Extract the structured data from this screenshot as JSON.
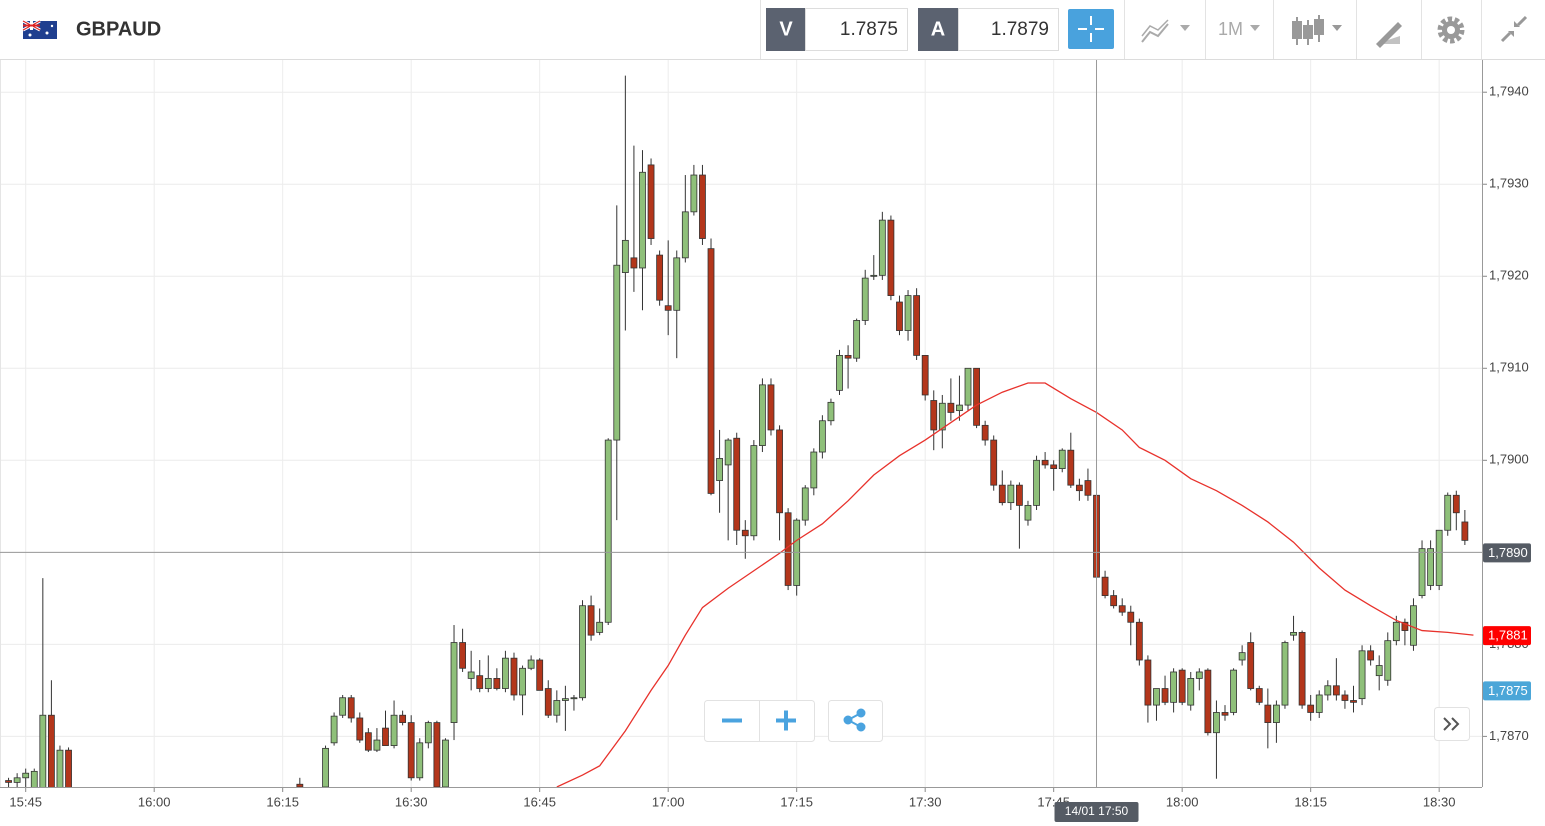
{
  "header": {
    "symbol": "GBPAUD",
    "sell": {
      "label": "V",
      "price": 1.7875
    },
    "buy": {
      "label": "A",
      "price": 1.7879
    },
    "timeframe": "1M"
  },
  "chart_data": {
    "type": "candlestick",
    "up_color": "#8fc07a",
    "down_color": "#b3361b",
    "grid": true,
    "xlim": [
      "15:42",
      "18:35"
    ],
    "xticks": [
      "15:45",
      "16:00",
      "16:15",
      "16:30",
      "16:45",
      "17:00",
      "17:15",
      "17:30",
      "17:45",
      "18:00",
      "18:15",
      "18:30"
    ],
    "ylim": [
      1.78645,
      1.79435
    ],
    "yticks": [
      {
        "value": 1.787,
        "label": "1,7870"
      },
      {
        "value": 1.788,
        "label": "1,7880"
      },
      {
        "value": 1.789,
        "label": "1,7890"
      },
      {
        "value": 1.79,
        "label": "1,7900"
      },
      {
        "value": 1.791,
        "label": "1,7910"
      },
      {
        "value": 1.792,
        "label": "1,7920"
      },
      {
        "value": 1.793,
        "label": "1,7930"
      },
      {
        "value": 1.794,
        "label": "1,7940"
      }
    ],
    "x": [
      "15:43",
      "15:44",
      "15:45",
      "15:46",
      "15:47",
      "15:48",
      "15:49",
      "15:50",
      "16:17",
      "16:20",
      "16:21",
      "16:22",
      "16:23",
      "16:24",
      "16:25",
      "16:26",
      "16:27",
      "16:28",
      "16:29",
      "16:30",
      "16:31",
      "16:32",
      "16:33",
      "16:34",
      "16:35",
      "16:36",
      "16:37",
      "16:38",
      "16:39",
      "16:40",
      "16:41",
      "16:42",
      "16:43",
      "16:44",
      "16:45",
      "16:46",
      "16:47",
      "16:48",
      "16:49",
      "16:50",
      "16:51",
      "16:52",
      "16:53",
      "16:54",
      "16:55",
      "16:56",
      "16:57",
      "16:58",
      "16:59",
      "17:00",
      "17:01",
      "17:02",
      "17:03",
      "17:04",
      "17:05",
      "17:06",
      "17:07",
      "17:08",
      "17:09",
      "17:10",
      "17:11",
      "17:12",
      "17:13",
      "17:14",
      "17:15",
      "17:16",
      "17:17",
      "17:18",
      "17:19",
      "17:20",
      "17:21",
      "17:22",
      "17:23",
      "17:24",
      "17:25",
      "17:26",
      "17:27",
      "17:28",
      "17:29",
      "17:30",
      "17:31",
      "17:32",
      "17:33",
      "17:34",
      "17:35",
      "17:36",
      "17:37",
      "17:38",
      "17:39",
      "17:40",
      "17:41",
      "17:42",
      "17:43",
      "17:44",
      "17:45",
      "17:46",
      "17:47",
      "17:48",
      "17:49",
      "17:50",
      "17:51",
      "17:52",
      "17:53",
      "17:54",
      "17:55",
      "17:56",
      "17:57",
      "17:58",
      "17:59",
      "18:00",
      "18:01",
      "18:02",
      "18:03",
      "18:04",
      "18:05",
      "18:06",
      "18:07",
      "18:08",
      "18:09",
      "18:10",
      "18:11",
      "18:12",
      "18:13",
      "18:14",
      "18:15",
      "18:16",
      "18:17",
      "18:18",
      "18:19",
      "18:20",
      "18:21",
      "18:22",
      "18:23",
      "18:24",
      "18:25",
      "18:26",
      "18:27",
      "18:28",
      "18:29",
      "18:30",
      "18:31",
      "18:32",
      "18:33"
    ],
    "open": [
      1.78652,
      1.7865,
      1.78655,
      1.7864,
      1.7864,
      1.78723,
      1.7862,
      1.78685,
      1.78648,
      1.78645,
      1.78693,
      1.78723,
      1.78742,
      1.7872,
      1.78704,
      1.78685,
      1.78709,
      1.7869,
      1.78723,
      1.78715,
      1.78655,
      1.78693,
      1.78715,
      1.78645,
      1.78715,
      1.78802,
      1.78763,
      1.78766,
      1.78752,
      1.78763,
      1.78752,
      1.78785,
      1.78745,
      1.78774,
      1.78783,
      1.78752,
      1.78723,
      1.78739,
      1.78741,
      1.78742,
      1.78842,
      1.78813,
      1.78824,
      1.79022,
      1.79204,
      1.7922,
      1.79209,
      1.79321,
      1.79223,
      1.79168,
      1.79163,
      1.7922,
      1.7927,
      1.7931,
      1.7923,
      1.78978,
      1.78995,
      1.79024,
      1.78924,
      1.78918,
      1.79016,
      1.79082,
      1.79033,
      1.78943,
      1.78864,
      1.78935,
      1.7897,
      1.79009,
      1.79043,
      1.79076,
      1.79114,
      1.79111,
      1.79152,
      1.79201,
      1.79201,
      1.79261,
      1.79172,
      1.79141,
      1.79179,
      1.79114,
      1.79065,
      1.79033,
      1.79062,
      1.79054,
      1.7906,
      1.791,
      1.79038,
      1.79022,
      1.78973,
      1.78954,
      1.78973,
      1.78935,
      1.78951,
      1.79,
      1.78995,
      1.78991,
      1.79011,
      1.78973,
      1.78978,
      1.78962,
      1.78873,
      1.78853,
      1.78842,
      1.78835,
      1.78824,
      1.78783,
      1.78734,
      1.78752,
      1.78737,
      1.78772,
      1.78734,
      1.78763,
      1.78772,
      1.78704,
      1.78726,
      1.78726,
      1.78783,
      1.78802,
      1.78752,
      1.78734,
      1.78715,
      1.78734,
      1.7881,
      1.78813,
      1.78734,
      1.78726,
      1.78745,
      1.78755,
      1.78745,
      1.78739,
      1.78741,
      1.78793,
      1.78766,
      1.78761,
      1.78804,
      1.78824,
      1.78799,
      1.78853,
      1.78864,
      1.78864,
      1.78924,
      1.78962,
      1.78933
    ],
    "high": [
      1.78655,
      1.7866,
      1.78665,
      1.78665,
      1.78872,
      1.78761,
      1.7869,
      1.78688,
      1.78655,
      1.7869,
      1.78726,
      1.78745,
      1.78745,
      1.78726,
      1.78709,
      1.78709,
      1.78728,
      1.78739,
      1.78728,
      1.78723,
      1.78698,
      1.78717,
      1.78717,
      1.78698,
      1.78821,
      1.78817,
      1.78793,
      1.78783,
      1.78788,
      1.78774,
      1.78793,
      1.78791,
      1.78777,
      1.78788,
      1.78785,
      1.78761,
      1.7875,
      1.78755,
      1.78745,
      1.78848,
      1.78853,
      1.78839,
      1.79024,
      1.79277,
      1.79418,
      1.79342,
      1.79337,
      1.79328,
      1.79228,
      1.79239,
      1.79228,
      1.7931,
      1.79321,
      1.79321,
      1.79241,
      1.79033,
      1.79024,
      1.7903,
      1.78935,
      1.79022,
      1.79089,
      1.79089,
      1.79038,
      1.78948,
      1.78937,
      1.78973,
      1.79013,
      1.79049,
      1.79067,
      1.7912,
      1.79125,
      1.79154,
      1.79207,
      1.79223,
      1.7927,
      1.79266,
      1.79179,
      1.79185,
      1.79187,
      1.79114,
      1.79076,
      1.79071,
      1.79089,
      1.79092,
      1.791,
      1.791,
      1.79043,
      1.79027,
      1.78989,
      1.78978,
      1.78976,
      1.78956,
      1.79005,
      1.79009,
      1.79,
      1.79013,
      1.7903,
      1.7898,
      1.78991,
      1.78967,
      1.7888,
      1.78859,
      1.7885,
      1.78842,
      1.78828,
      1.78788,
      1.78752,
      1.78766,
      1.78774,
      1.78774,
      1.7877,
      1.78774,
      1.78774,
      1.78739,
      1.78734,
      1.78774,
      1.78799,
      1.78813,
      1.78755,
      1.78752,
      1.78739,
      1.78804,
      1.78831,
      1.78815,
      1.78745,
      1.7875,
      1.78761,
      1.78785,
      1.7875,
      1.78755,
      1.78799,
      1.78799,
      1.78788,
      1.78813,
      1.78831,
      1.78828,
      1.7885,
      1.78913,
      1.78913,
      1.78924,
      1.78965,
      1.78967,
      1.78946
    ],
    "low": [
      1.78645,
      1.7864,
      1.7864,
      1.7863,
      1.7863,
      1.7862,
      1.7861,
      1.7862,
      1.7864,
      1.78641,
      1.7869,
      1.7872,
      1.78715,
      1.78693,
      1.78683,
      1.78683,
      1.7869,
      1.78687,
      1.78712,
      1.78652,
      1.78652,
      1.78687,
      1.78641,
      1.78641,
      1.78696,
      1.7877,
      1.7875,
      1.78748,
      1.78748,
      1.7875,
      1.78748,
      1.78739,
      1.78723,
      1.78772,
      1.7875,
      1.7872,
      1.78715,
      1.78706,
      1.78728,
      1.78739,
      1.78804,
      1.7881,
      1.78821,
      1.78935,
      1.79141,
      1.79183,
      1.79163,
      1.79234,
      1.79168,
      1.79136,
      1.79111,
      1.79215,
      1.79266,
      1.79234,
      1.78962,
      1.78943,
      1.78913,
      1.78908,
      1.78893,
      1.78913,
      1.79009,
      1.79027,
      1.78913,
      1.78859,
      1.78853,
      1.78929,
      1.78962,
      1.79002,
      1.79038,
      1.79071,
      1.79078,
      1.79107,
      1.79147,
      1.79196,
      1.79196,
      1.79174,
      1.79136,
      1.7913,
      1.79109,
      1.79065,
      1.79011,
      1.79013,
      1.79043,
      1.79043,
      1.79054,
      1.79035,
      1.79016,
      1.78967,
      1.78951,
      1.78946,
      1.78904,
      1.78929,
      1.78946,
      1.78991,
      1.78967,
      1.78987,
      1.7897,
      1.78956,
      1.78956,
      1.7887,
      1.7885,
      1.78839,
      1.78831,
      1.78799,
      1.78777,
      1.78715,
      1.78717,
      1.78734,
      1.78726,
      1.78734,
      1.78728,
      1.7875,
      1.78701,
      1.78654,
      1.78717,
      1.78723,
      1.78777,
      1.7875,
      1.78734,
      1.78687,
      1.78693,
      1.7873,
      1.78804,
      1.7873,
      1.78717,
      1.7872,
      1.78739,
      1.78739,
      1.7873,
      1.78726,
      1.78734,
      1.78777,
      1.7875,
      1.78755,
      1.78799,
      1.78799,
      1.78793,
      1.7885,
      1.78859,
      1.78859,
      1.78918,
      1.78924,
      1.78908
    ],
    "close": [
      1.7865,
      1.78655,
      1.7866,
      1.78662,
      1.78723,
      1.7864,
      1.78685,
      1.7863,
      1.78645,
      1.78687,
      1.78722,
      1.78742,
      1.7872,
      1.78696,
      1.78685,
      1.78696,
      1.7869,
      1.78723,
      1.78715,
      1.78655,
      1.78693,
      1.78715,
      1.78645,
      1.78696,
      1.78802,
      1.78774,
      1.7877,
      1.78752,
      1.78763,
      1.78752,
      1.78785,
      1.78745,
      1.78774,
      1.78783,
      1.7875,
      1.78723,
      1.78739,
      1.78741,
      1.78742,
      1.78842,
      1.7881,
      1.78824,
      1.79022,
      1.79212,
      1.79239,
      1.79209,
      1.79313,
      1.79241,
      1.79174,
      1.79163,
      1.7922,
      1.7927,
      1.7931,
      1.79241,
      1.78964,
      1.79002,
      1.79022,
      1.78924,
      1.78918,
      1.79016,
      1.79082,
      1.79033,
      1.78943,
      1.78864,
      1.78935,
      1.7897,
      1.79009,
      1.79043,
      1.79063,
      1.79114,
      1.79111,
      1.79152,
      1.79198,
      1.79201,
      1.79261,
      1.79179,
      1.79141,
      1.79179,
      1.79114,
      1.79071,
      1.79033,
      1.79062,
      1.79052,
      1.7906,
      1.791,
      1.79038,
      1.79022,
      1.78973,
      1.78954,
      1.78973,
      1.78951,
      1.78951,
      1.79,
      1.78995,
      1.78991,
      1.79011,
      1.78973,
      1.78967,
      1.78962,
      1.78873,
      1.78853,
      1.78842,
      1.78835,
      1.78824,
      1.78783,
      1.78734,
      1.78752,
      1.78737,
      1.7877,
      1.78737,
      1.78763,
      1.7877,
      1.78704,
      1.78726,
      1.78723,
      1.78772,
      1.78791,
      1.78752,
      1.78737,
      1.78715,
      1.78734,
      1.78802,
      1.78813,
      1.78734,
      1.78726,
      1.78745,
      1.78755,
      1.78745,
      1.78739,
      1.78737,
      1.78793,
      1.78783,
      1.78777,
      1.78804,
      1.78824,
      1.78815,
      1.78842,
      1.78904,
      1.78904,
      1.78924,
      1.78962,
      1.78943,
      1.78913
    ],
    "ma": {
      "color": "#e8322c",
      "x": [
        "16:47",
        "16:50",
        "16:52",
        "16:55",
        "16:58",
        "17:00",
        "17:02",
        "17:04",
        "17:07",
        "17:10",
        "17:13",
        "17:15",
        "17:18",
        "17:21",
        "17:24",
        "17:27",
        "17:30",
        "17:33",
        "17:36",
        "17:39",
        "17:42",
        "17:44",
        "17:47",
        "17:50",
        "17:53",
        "17:55",
        "17:58",
        "18:01",
        "18:04",
        "18:07",
        "18:10",
        "18:13",
        "18:16",
        "18:19",
        "18:22",
        "18:25",
        "18:28",
        "18:31",
        "18:34"
      ],
      "values": [
        1.78645,
        1.78658,
        1.78668,
        1.78706,
        1.7875,
        1.78777,
        1.7881,
        1.7884,
        1.78861,
        1.7888,
        1.78899,
        1.78913,
        1.78931,
        1.78956,
        1.78984,
        1.79005,
        1.79022,
        1.79041,
        1.7906,
        1.79074,
        1.79084,
        1.79084,
        1.79067,
        1.79052,
        1.79033,
        1.79014,
        1.79,
        1.7898,
        1.78967,
        1.78951,
        1.78933,
        1.78911,
        1.78883,
        1.78859,
        1.78842,
        1.78826,
        1.78815,
        1.78813,
        1.7881
      ]
    },
    "crosshair": {
      "x": {
        "value": "17:50",
        "label": "14/01 17:50"
      },
      "y": {
        "value": 1.789,
        "label": "1,7890"
      }
    },
    "price_labels": [
      {
        "value": 1.7881,
        "label": "1,7881",
        "color": "#ff0000"
      },
      {
        "value": 1.7875,
        "label": "1,7875",
        "color": "#4ba6d8"
      }
    ]
  }
}
